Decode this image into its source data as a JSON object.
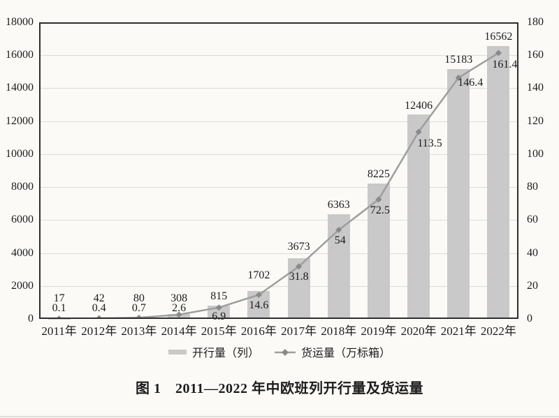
{
  "figure": {
    "caption": "图 1　2011—2022 年中欧班列开行量及货运量"
  },
  "legend": {
    "bar_series": "开行量（列）",
    "line_series": "货运量（万标箱）"
  },
  "colors": {
    "background": "#fbfaf7",
    "bar": "#c9c9c9",
    "line": "#9e9e9e",
    "marker": "#8a8a8a",
    "grid": "#dcdcdc",
    "axis": "#2e2e2e",
    "text": "#1c1c1c"
  },
  "chart_data": {
    "type": "bar+line",
    "title": "图 1　2011—2022 年中欧班列开行量及货运量",
    "categories": [
      "2011年",
      "2012年",
      "2013年",
      "2014年",
      "2015年",
      "2016年",
      "2017年",
      "2018年",
      "2019年",
      "2020年",
      "2021年",
      "2022年"
    ],
    "series": [
      {
        "name": "开行量（列）",
        "type": "bar",
        "axis": "left",
        "values": [
          17,
          42,
          80,
          308,
          815,
          1702,
          3673,
          6363,
          8225,
          12406,
          15183,
          16562
        ]
      },
      {
        "name": "货运量（万标箱）",
        "type": "line",
        "axis": "right",
        "values": [
          0.1,
          0.4,
          0.7,
          2.6,
          6.9,
          14.6,
          31.8,
          54,
          72.5,
          113.5,
          146.4,
          161.4
        ]
      }
    ],
    "left_axis": {
      "min": 0,
      "max": 18000,
      "step": 2000,
      "ticks": [
        0,
        2000,
        4000,
        6000,
        8000,
        10000,
        12000,
        14000,
        16000,
        18000
      ]
    },
    "right_axis": {
      "min": 0,
      "max": 180,
      "step": 20,
      "ticks": [
        0,
        20,
        40,
        60,
        80,
        100,
        120,
        140,
        160,
        180
      ]
    },
    "grid": true,
    "legend_position": "bottom",
    "data_labels": true
  }
}
